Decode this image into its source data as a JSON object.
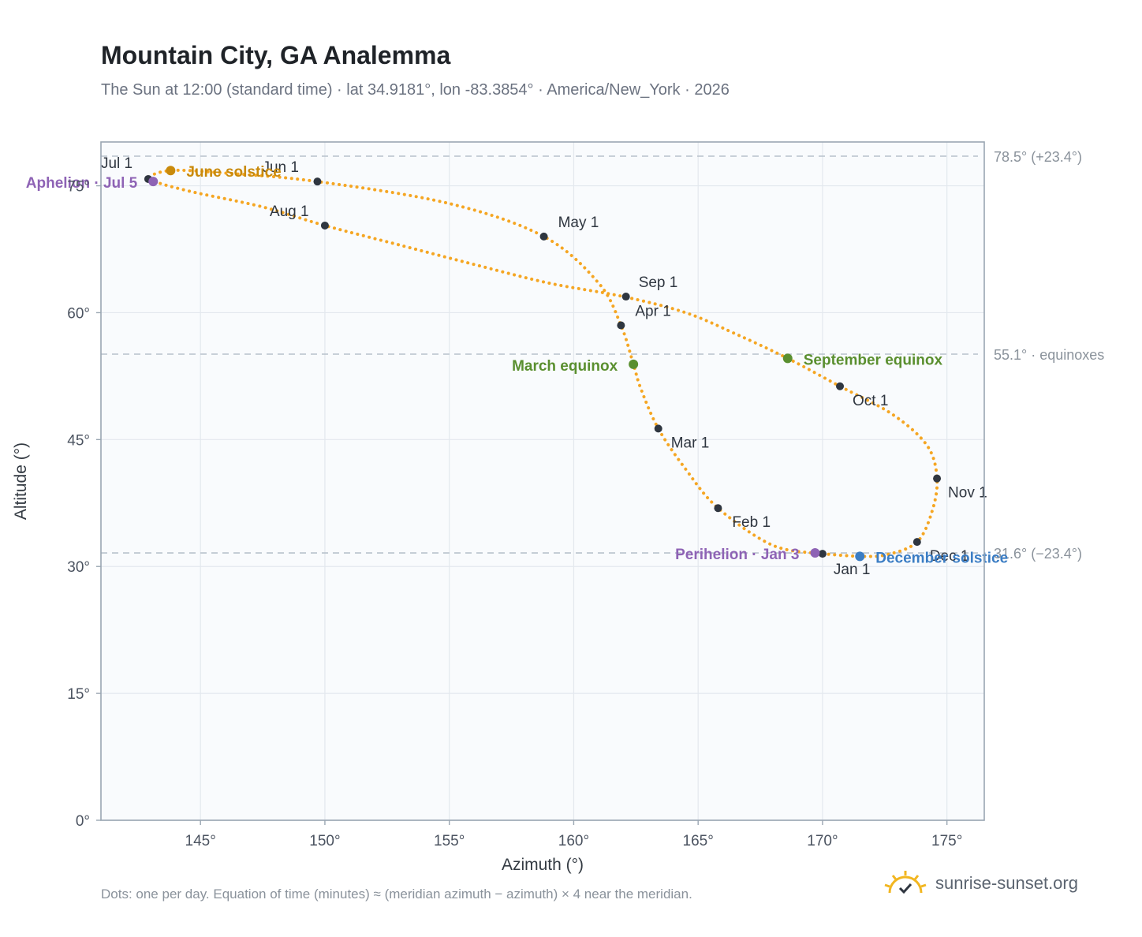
{
  "title": "Mountain City, GA Analemma",
  "subtitle": "The Sun at 12:00 (standard time) · lat 34.9181°, lon -83.3854° · America/New_York · 2026",
  "footnote": "Dots: one per day. Equation of time (minutes) ≈ (meridian azimuth − azimuth) × 4 near the meridian.",
  "brand": {
    "text": "sunrise-sunset.org",
    "icon": "sun-logo-icon"
  },
  "colors": {
    "curve": "#f5a623",
    "month": "#2f3640",
    "solstice_june": "#c98a0b",
    "equinox": "#5a8f2f",
    "solstice_dec": "#3b7dc4",
    "apsis": "#8e63b5",
    "refline": "#b8c2cc",
    "grid": "#e3e8ee",
    "plot_bg": "#f9fbfd",
    "frame": "#9aa6b2"
  },
  "chart_data": {
    "type": "scatter",
    "xlabel": "Azimuth (°)",
    "ylabel": "Altitude (°)",
    "xlim": [
      141,
      176.5
    ],
    "ylim": [
      0,
      78.5
    ],
    "xticks": [
      145,
      150,
      155,
      160,
      165,
      170,
      175
    ],
    "xtick_labels": [
      "145°",
      "150°",
      "155°",
      "160°",
      "165°",
      "170°",
      "175°"
    ],
    "yticks": [
      0,
      15,
      30,
      45,
      60,
      75
    ],
    "ytick_labels": [
      "0°",
      "15°",
      "30°",
      "45°",
      "60°",
      "75°"
    ],
    "grid": true,
    "curve": {
      "points": [
        [
          170.0,
          31.5
        ],
        [
          168.0,
          32.5
        ],
        [
          165.8,
          36.9
        ],
        [
          164.5,
          41.5
        ],
        [
          163.4,
          46.3
        ],
        [
          162.7,
          51.0
        ],
        [
          162.4,
          53.9
        ],
        [
          161.9,
          58.5
        ],
        [
          161.0,
          63.5
        ],
        [
          158.8,
          69.0
        ],
        [
          155.0,
          72.9
        ],
        [
          149.7,
          75.5
        ],
        [
          146.0,
          76.5
        ],
        [
          143.8,
          76.8
        ],
        [
          143.0,
          75.8
        ],
        [
          144.5,
          74.4
        ],
        [
          147.5,
          72.5
        ],
        [
          150.0,
          70.3
        ],
        [
          153.0,
          68.0
        ],
        [
          156.0,
          65.7
        ],
        [
          159.0,
          63.5
        ],
        [
          162.0,
          61.9
        ],
        [
          164.5,
          60.0
        ],
        [
          166.5,
          57.5
        ],
        [
          168.6,
          54.6
        ],
        [
          170.7,
          51.3
        ],
        [
          172.8,
          48.0
        ],
        [
          174.2,
          44.3
        ],
        [
          174.6,
          40.4
        ],
        [
          174.4,
          36.5
        ],
        [
          173.8,
          32.9
        ],
        [
          172.6,
          31.4
        ],
        [
          171.5,
          31.2
        ],
        [
          170.0,
          31.5
        ]
      ]
    },
    "months": [
      {
        "label": "Jan 1",
        "az": 170.0,
        "alt": 31.5
      },
      {
        "label": "Feb 1",
        "az": 165.8,
        "alt": 36.9
      },
      {
        "label": "Mar 1",
        "az": 163.4,
        "alt": 46.3
      },
      {
        "label": "Apr 1",
        "az": 161.9,
        "alt": 58.5
      },
      {
        "label": "May 1",
        "az": 158.8,
        "alt": 69.0
      },
      {
        "label": "Jun 1",
        "az": 149.7,
        "alt": 75.5
      },
      {
        "label": "Jul 1",
        "az": 142.9,
        "alt": 75.8
      },
      {
        "label": "Aug 1",
        "az": 150.0,
        "alt": 70.3
      },
      {
        "label": "Sep 1",
        "az": 162.1,
        "alt": 61.9
      },
      {
        "label": "Oct 1",
        "az": 170.7,
        "alt": 51.3
      },
      {
        "label": "Nov 1",
        "az": 174.6,
        "alt": 40.4
      },
      {
        "label": "Dec 1",
        "az": 173.8,
        "alt": 32.9
      }
    ],
    "events": [
      {
        "label": "June solstice",
        "az": 143.8,
        "alt": 76.8,
        "color": "#c98a0b"
      },
      {
        "label": "March equinox",
        "az": 162.4,
        "alt": 53.9,
        "color": "#5a8f2f"
      },
      {
        "label": "September equinox",
        "az": 168.6,
        "alt": 54.6,
        "color": "#5a8f2f"
      },
      {
        "label": "December solstice",
        "az": 171.5,
        "alt": 31.2,
        "color": "#3b7dc4"
      },
      {
        "label": "Aphelion · Jul 5",
        "az": 143.1,
        "alt": 75.5,
        "color": "#8e63b5"
      },
      {
        "label": "Perihelion · Jan 3",
        "az": 169.7,
        "alt": 31.6,
        "color": "#8e63b5"
      }
    ],
    "reference_lines": [
      {
        "alt": 78.5,
        "label": "78.5° (+23.4°)"
      },
      {
        "alt": 55.1,
        "label": "55.1° · equinoxes"
      },
      {
        "alt": 31.6,
        "label": "31.6° (−23.4°)"
      }
    ]
  }
}
